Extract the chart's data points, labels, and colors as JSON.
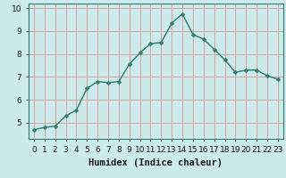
{
  "x": [
    0,
    1,
    2,
    3,
    4,
    5,
    6,
    7,
    8,
    9,
    10,
    11,
    12,
    13,
    14,
    15,
    16,
    17,
    18,
    19,
    20,
    21,
    22,
    23
  ],
  "y": [
    4.7,
    4.8,
    4.85,
    5.3,
    5.55,
    6.5,
    6.8,
    6.75,
    6.8,
    7.55,
    8.05,
    8.45,
    8.5,
    9.35,
    9.75,
    8.85,
    8.65,
    8.2,
    7.75,
    7.2,
    7.3,
    7.3,
    7.05,
    6.9
  ],
  "line_color": "#2e7d6e",
  "marker": "D",
  "marker_size": 2.5,
  "linewidth": 1.0,
  "bg_color": "#cceaea",
  "grid_color": "#d8a0a0",
  "xlabel": "Humidex (Indice chaleur)",
  "xlim": [
    -0.5,
    23.5
  ],
  "ylim": [
    4.3,
    10.2
  ],
  "yticks": [
    5,
    6,
    7,
    8,
    9,
    10
  ],
  "xtick_labels": [
    "0",
    "1",
    "2",
    "3",
    "4",
    "5",
    "6",
    "7",
    "8",
    "9",
    "10",
    "11",
    "12",
    "13",
    "14",
    "15",
    "16",
    "17",
    "18",
    "19",
    "20",
    "21",
    "22",
    "23"
  ],
  "xlabel_fontsize": 7.5,
  "tick_fontsize": 6.5
}
